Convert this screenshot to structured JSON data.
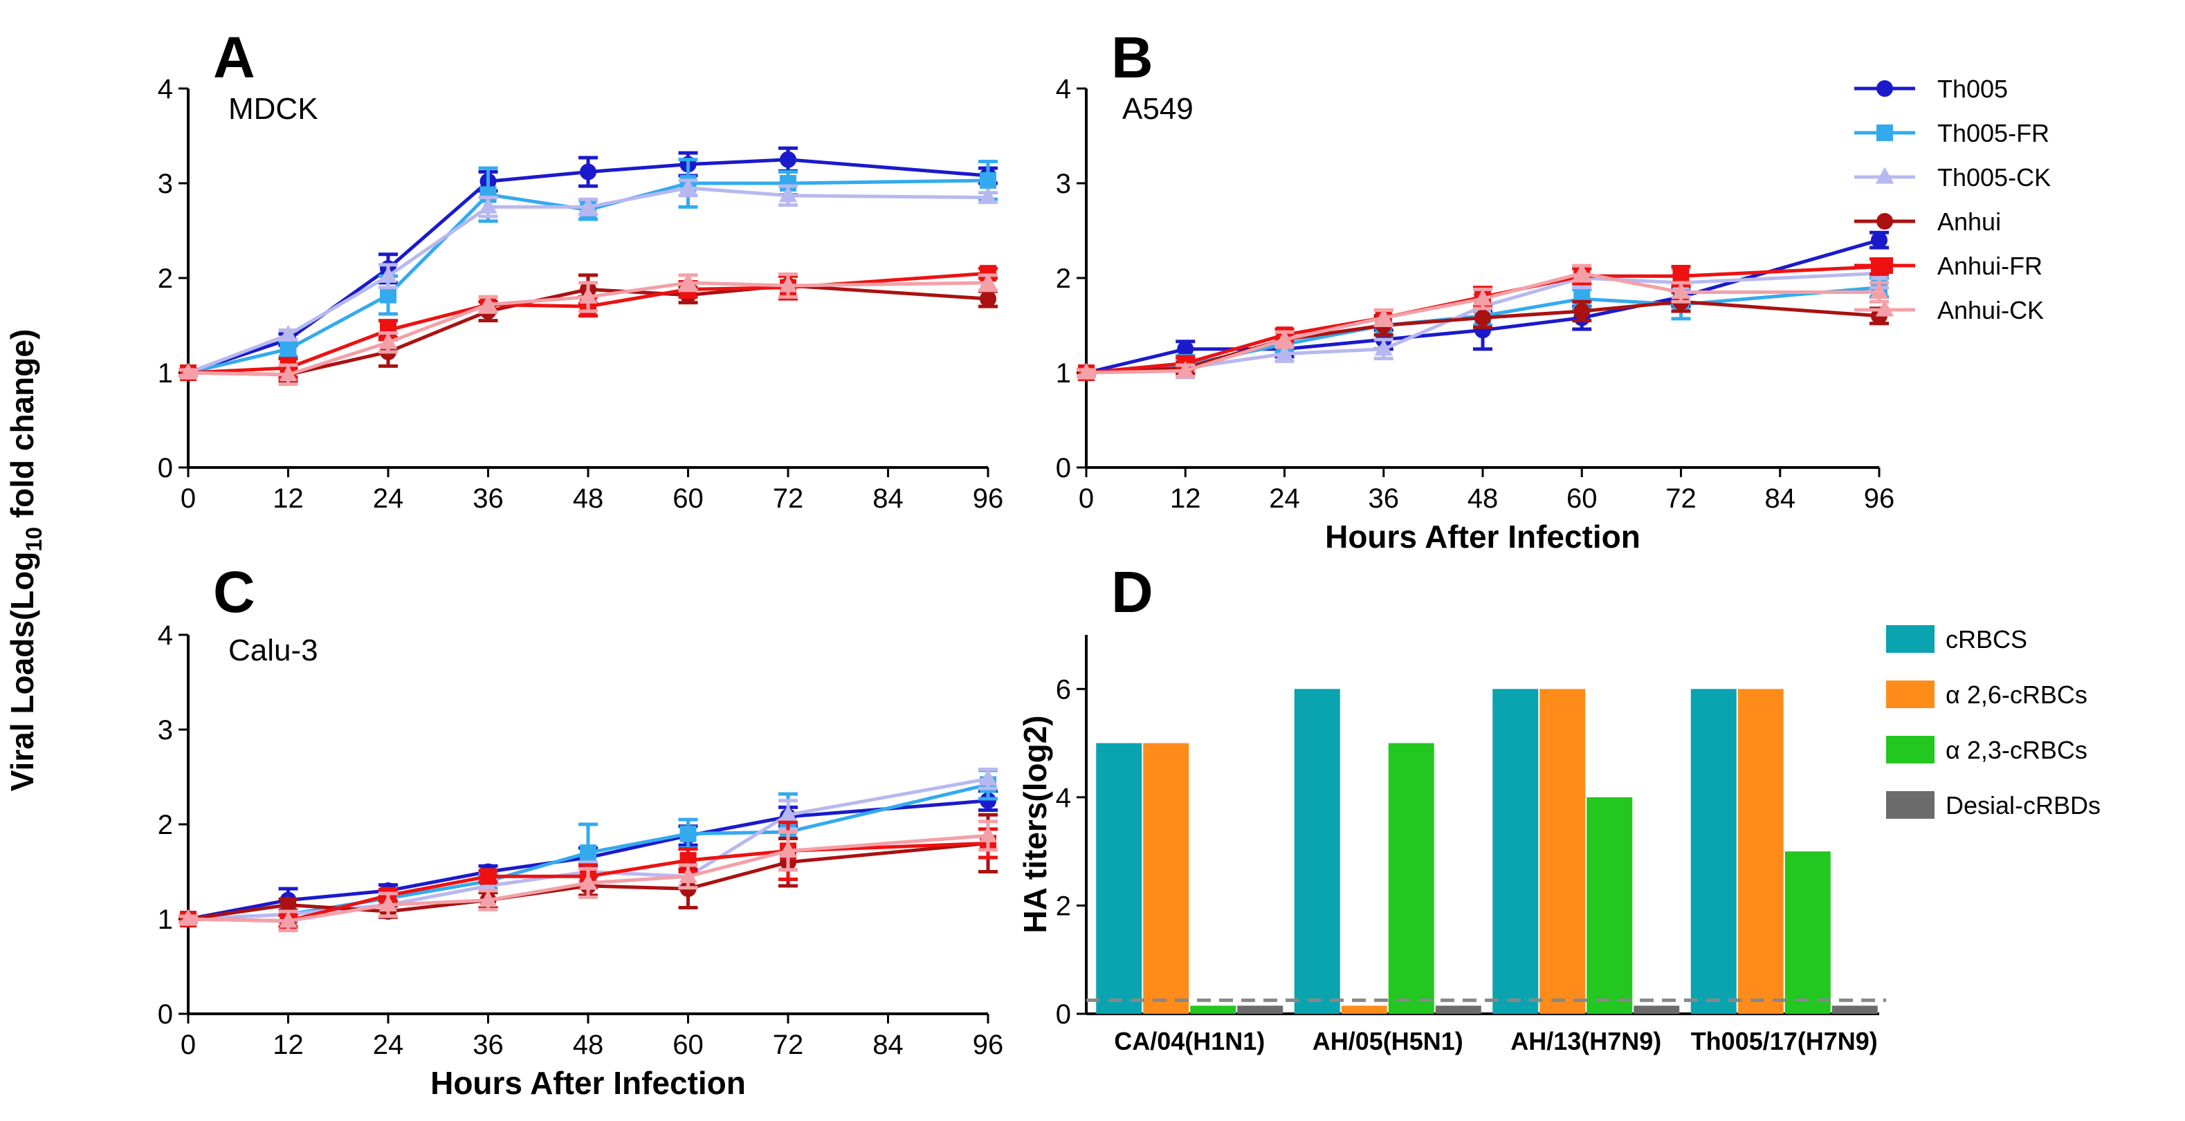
{
  "figure": {
    "y_axis_title": "Viral Loads(Log10 fold change)",
    "x_axis_title": "Hours After Infection"
  },
  "legend": {
    "line": [
      {
        "name": "Th005",
        "color": "#1a1acc",
        "marker": "circle"
      },
      {
        "name": "Th005-FR",
        "color": "#33aaee",
        "marker": "square"
      },
      {
        "name": "Th005-CK",
        "color": "#b8b8f0",
        "marker": "triangle"
      },
      {
        "name": "Anhui",
        "color": "#aa1111",
        "marker": "circle"
      },
      {
        "name": "Anhui-FR",
        "color": "#ee1111",
        "marker": "square"
      },
      {
        "name": "Anhui-CK",
        "color": "#f4a0a8",
        "marker": "triangle"
      }
    ],
    "bar": [
      {
        "name": "cRBCS",
        "color": "#0aa3b0"
      },
      {
        "name": "α 2,6-cRBCs",
        "color": "#ff8c1a"
      },
      {
        "name": "α 2,3-cRBCs",
        "color": "#22c71f"
      },
      {
        "name": "Desial-cRBDs",
        "color": "#6b6b6b"
      }
    ]
  },
  "chart_data": [
    {
      "panel": "A",
      "type": "line",
      "cell_line": "MDCK",
      "xlabel": "",
      "ylabel": "Viral Loads(Log10 fold change)",
      "x": [
        0,
        12,
        24,
        36,
        48,
        60,
        72,
        96
      ],
      "xticks": [
        0,
        12,
        24,
        36,
        48,
        60,
        72,
        84,
        96
      ],
      "xlim": [
        0,
        96
      ],
      "yticks": [
        0,
        1,
        2,
        3,
        4
      ],
      "ylim": [
        0,
        4
      ],
      "series": [
        {
          "name": "Th005",
          "values": [
            1.0,
            1.35,
            2.1,
            3.02,
            3.12,
            3.2,
            3.25,
            3.08
          ],
          "errors": [
            0.03,
            0.06,
            0.15,
            0.1,
            0.15,
            0.12,
            0.12,
            0.08
          ]
        },
        {
          "name": "Th005-FR",
          "values": [
            1.0,
            1.25,
            1.82,
            2.88,
            2.72,
            3.0,
            3.0,
            3.03
          ],
          "errors": [
            0.03,
            0.08,
            0.2,
            0.28,
            0.1,
            0.25,
            0.12,
            0.2
          ]
        },
        {
          "name": "Th005-CK",
          "values": [
            1.0,
            1.4,
            2.02,
            2.75,
            2.75,
            2.95,
            2.87,
            2.85
          ],
          "errors": [
            0.03,
            0.05,
            0.12,
            0.1,
            0.08,
            0.08,
            0.1,
            0.05
          ]
        },
        {
          "name": "Anhui",
          "values": [
            1.0,
            0.98,
            1.22,
            1.65,
            1.88,
            1.82,
            1.92,
            1.78
          ],
          "errors": [
            0.03,
            0.07,
            0.15,
            0.1,
            0.15,
            0.08,
            0.12,
            0.08
          ]
        },
        {
          "name": "Anhui-FR",
          "values": [
            1.0,
            1.05,
            1.45,
            1.72,
            1.7,
            1.88,
            1.9,
            2.05
          ],
          "errors": [
            0.03,
            0.1,
            0.1,
            0.08,
            0.1,
            0.08,
            0.12,
            0.05
          ]
        },
        {
          "name": "Anhui-CK",
          "values": [
            1.0,
            0.98,
            1.32,
            1.72,
            1.8,
            1.95,
            1.92,
            1.95
          ],
          "errors": [
            0.03,
            0.1,
            0.1,
            0.08,
            0.15,
            0.08,
            0.12,
            0.08
          ]
        }
      ]
    },
    {
      "panel": "B",
      "type": "line",
      "cell_line": "A549",
      "xlabel": "Hours After Infection",
      "ylabel": "",
      "x": [
        0,
        12,
        24,
        36,
        48,
        60,
        72,
        96
      ],
      "xticks": [
        0,
        12,
        24,
        36,
        48,
        60,
        72,
        84,
        96
      ],
      "xlim": [
        0,
        96
      ],
      "yticks": [
        0,
        1,
        2,
        3,
        4
      ],
      "ylim": [
        0,
        4
      ],
      "series": [
        {
          "name": "Th005",
          "values": [
            1.0,
            1.25,
            1.25,
            1.35,
            1.45,
            1.58,
            1.8,
            2.4
          ],
          "errors": [
            0.03,
            0.08,
            0.08,
            0.1,
            0.2,
            0.12,
            0.1,
            0.08
          ]
        },
        {
          "name": "Th005-FR",
          "values": [
            1.0,
            1.08,
            1.3,
            1.5,
            1.6,
            1.78,
            1.72,
            1.9
          ],
          "errors": [
            0.03,
            0.1,
            0.08,
            0.1,
            0.1,
            0.1,
            0.15,
            0.1
          ]
        },
        {
          "name": "Th005-CK",
          "values": [
            1.0,
            1.05,
            1.2,
            1.25,
            1.7,
            2.0,
            1.95,
            2.05
          ],
          "errors": [
            0.03,
            0.1,
            0.08,
            0.1,
            0.12,
            0.1,
            0.15,
            0.15
          ]
        },
        {
          "name": "Anhui",
          "values": [
            1.0,
            1.05,
            1.35,
            1.5,
            1.58,
            1.65,
            1.75,
            1.6
          ],
          "errors": [
            0.03,
            0.06,
            0.08,
            0.1,
            0.1,
            0.1,
            0.1,
            0.08
          ]
        },
        {
          "name": "Anhui-FR",
          "values": [
            1.0,
            1.1,
            1.4,
            1.58,
            1.8,
            2.02,
            2.02,
            2.12
          ],
          "errors": [
            0.03,
            0.06,
            0.06,
            0.08,
            0.1,
            0.08,
            0.1,
            0.08
          ]
        },
        {
          "name": "Anhui-CK",
          "values": [
            1.0,
            1.02,
            1.35,
            1.58,
            1.78,
            2.05,
            1.85,
            1.85
          ],
          "errors": [
            0.03,
            0.06,
            0.08,
            0.08,
            0.1,
            0.08,
            0.1,
            0.1
          ]
        }
      ]
    },
    {
      "panel": "C",
      "type": "line",
      "cell_line": "Calu-3",
      "xlabel": "Hours After Infection",
      "ylabel": "",
      "x": [
        0,
        12,
        24,
        36,
        48,
        60,
        72,
        96
      ],
      "xticks": [
        0,
        12,
        24,
        36,
        48,
        60,
        72,
        84,
        96
      ],
      "xlim": [
        0,
        96
      ],
      "yticks": [
        0,
        1,
        2,
        3,
        4
      ],
      "ylim": [
        0,
        4
      ],
      "series": [
        {
          "name": "Th005",
          "values": [
            1.0,
            1.2,
            1.3,
            1.5,
            1.65,
            1.88,
            2.08,
            2.25
          ],
          "errors": [
            0.03,
            0.12,
            0.06,
            0.06,
            0.1,
            0.1,
            0.1,
            0.1
          ]
        },
        {
          "name": "Th005-FR",
          "values": [
            1.0,
            1.05,
            1.22,
            1.4,
            1.7,
            1.9,
            1.92,
            2.42
          ],
          "errors": [
            0.03,
            0.08,
            0.08,
            0.08,
            0.3,
            0.15,
            0.4,
            0.15
          ]
        },
        {
          "name": "Th005-CK",
          "values": [
            1.0,
            1.05,
            1.15,
            1.35,
            1.5,
            1.45,
            2.1,
            2.48
          ],
          "errors": [
            0.03,
            0.06,
            0.06,
            0.06,
            0.1,
            0.1,
            0.15,
            0.1
          ]
        },
        {
          "name": "Anhui",
          "values": [
            1.0,
            1.15,
            1.08,
            1.2,
            1.35,
            1.32,
            1.6,
            1.8
          ],
          "errors": [
            0.03,
            0.06,
            0.06,
            0.08,
            0.1,
            0.2,
            0.25,
            0.3
          ]
        },
        {
          "name": "Anhui-FR",
          "values": [
            1.0,
            0.98,
            1.25,
            1.45,
            1.45,
            1.62,
            1.72,
            1.8
          ],
          "errors": [
            0.03,
            0.06,
            0.06,
            0.06,
            0.12,
            0.12,
            0.3,
            0.15
          ]
        },
        {
          "name": "Anhui-CK",
          "values": [
            1.0,
            0.98,
            1.15,
            1.2,
            1.38,
            1.45,
            1.72,
            1.88
          ],
          "errors": [
            0.03,
            0.1,
            0.12,
            0.1,
            0.15,
            0.12,
            0.2,
            0.15
          ]
        }
      ]
    },
    {
      "panel": "D",
      "type": "bar",
      "title": "",
      "xlabel": "",
      "ylabel": "HA titers(log2)",
      "categories": [
        "CA/04(H1N1)",
        "AH/05(H5N1)",
        "AH/13(H7N9)",
        "Th005/17(H7N9)"
      ],
      "yticks": [
        0,
        2,
        4,
        6
      ],
      "ylim": [
        0,
        7
      ],
      "threshold": 0.25,
      "series": [
        {
          "name": "cRBCS",
          "values": [
            5,
            6,
            6,
            6
          ]
        },
        {
          "name": "α 2,6-cRBCs",
          "values": [
            5,
            0.15,
            6,
            6
          ]
        },
        {
          "name": "α 2,3-cRBCs",
          "values": [
            0.15,
            5,
            4,
            3
          ]
        },
        {
          "name": "Desial-cRBDs",
          "values": [
            0.15,
            0.15,
            0.15,
            0.15
          ]
        }
      ]
    }
  ]
}
